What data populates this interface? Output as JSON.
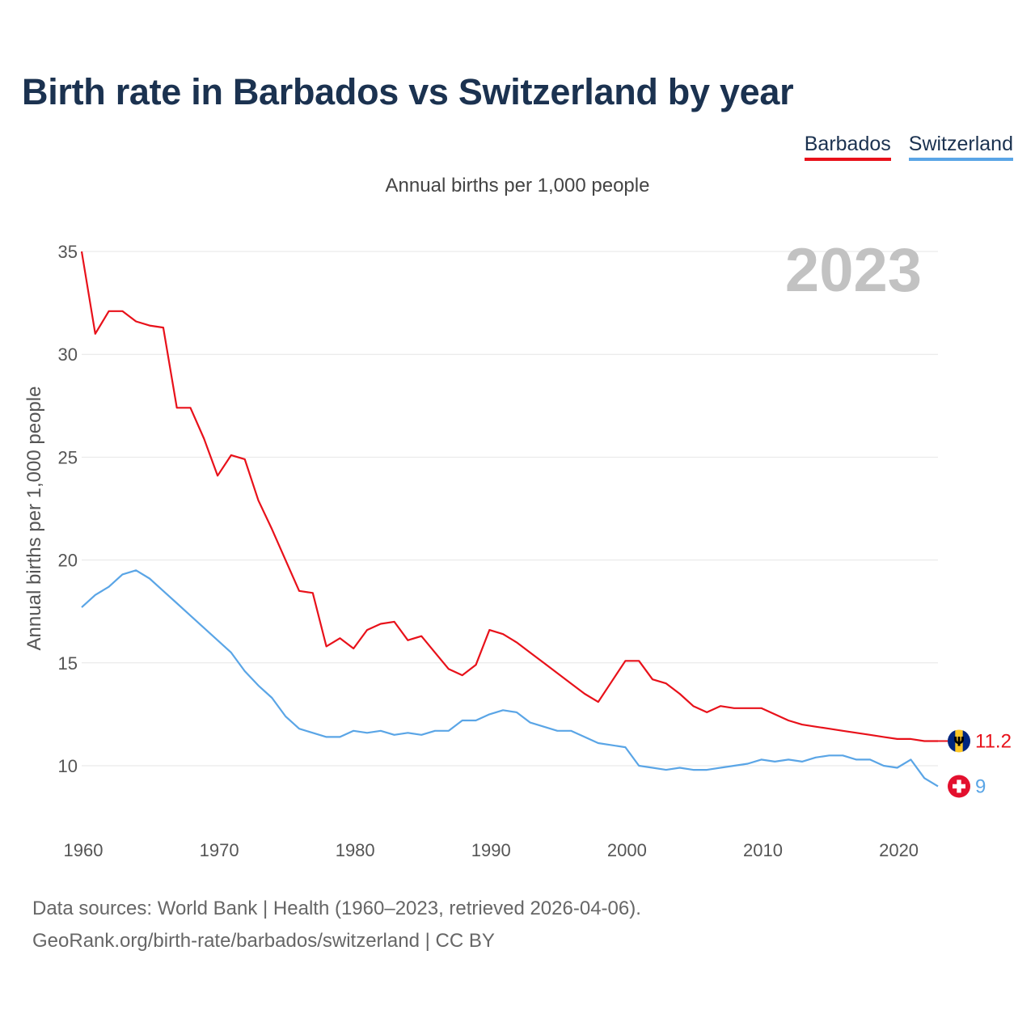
{
  "title": "Birth rate in Barbados vs Switzerland by year",
  "subtitle": "Annual births per 1,000 people",
  "legend": [
    {
      "label": "Barbados",
      "color": "#e8111a"
    },
    {
      "label": "Switzerland",
      "color": "#5aa5e6"
    }
  ],
  "year_watermark": "2023",
  "end_labels": {
    "barbados": "11.2",
    "switzerland": "9"
  },
  "source_lines": [
    "Data sources: World Bank | Health (1960–2023, retrieved 2026-04-06).",
    "GeoRank.org/birth-rate/barbados/switzerland | CC BY"
  ],
  "chart_data": {
    "type": "line",
    "title": "Birth rate in Barbados vs Switzerland by year",
    "xlabel": "",
    "ylabel": "Annual births per 1,000 people",
    "xlim": [
      1960,
      2023
    ],
    "ylim": [
      7,
      35
    ],
    "y_ticks": [
      10,
      15,
      20,
      25,
      30,
      35
    ],
    "x_ticks": [
      1960,
      1970,
      1980,
      1990,
      2000,
      2010,
      2020
    ],
    "grid": true,
    "x": [
      1960,
      1961,
      1962,
      1963,
      1964,
      1965,
      1966,
      1967,
      1968,
      1969,
      1970,
      1971,
      1972,
      1973,
      1974,
      1975,
      1976,
      1977,
      1978,
      1979,
      1980,
      1981,
      1982,
      1983,
      1984,
      1985,
      1986,
      1987,
      1988,
      1989,
      1990,
      1991,
      1992,
      1993,
      1994,
      1995,
      1996,
      1997,
      1998,
      1999,
      2000,
      2001,
      2002,
      2003,
      2004,
      2005,
      2006,
      2007,
      2008,
      2009,
      2010,
      2011,
      2012,
      2013,
      2014,
      2015,
      2016,
      2017,
      2018,
      2019,
      2020,
      2021,
      2022,
      2023
    ],
    "series": [
      {
        "name": "Barbados",
        "color": "#e8111a",
        "values": [
          35.0,
          31.0,
          32.1,
          32.1,
          31.6,
          31.4,
          31.3,
          27.4,
          27.4,
          25.9,
          24.1,
          25.1,
          24.9,
          22.9,
          21.5,
          20.0,
          18.5,
          18.4,
          15.8,
          16.2,
          15.7,
          16.6,
          16.9,
          17.0,
          16.1,
          16.3,
          15.5,
          14.7,
          14.4,
          14.9,
          16.6,
          16.4,
          16.0,
          15.5,
          15.0,
          14.5,
          14.0,
          13.5,
          13.1,
          14.1,
          15.1,
          15.1,
          14.2,
          14.0,
          13.5,
          12.9,
          12.6,
          12.9,
          12.8,
          12.8,
          12.8,
          12.5,
          12.2,
          12.0,
          11.9,
          11.8,
          11.7,
          11.6,
          11.5,
          11.4,
          11.3,
          11.3,
          11.2,
          11.2
        ]
      },
      {
        "name": "Switzerland",
        "color": "#5aa5e6",
        "values": [
          17.7,
          18.3,
          18.7,
          19.3,
          19.5,
          19.1,
          18.5,
          17.9,
          17.3,
          16.7,
          16.1,
          15.5,
          14.6,
          13.9,
          13.3,
          12.4,
          11.8,
          11.6,
          11.4,
          11.4,
          11.7,
          11.6,
          11.7,
          11.5,
          11.6,
          11.5,
          11.7,
          11.7,
          12.2,
          12.2,
          12.5,
          12.7,
          12.6,
          12.1,
          11.9,
          11.7,
          11.7,
          11.4,
          11.1,
          11.0,
          10.9,
          10.0,
          9.9,
          9.8,
          9.9,
          9.8,
          9.8,
          9.9,
          10.0,
          10.1,
          10.3,
          10.2,
          10.3,
          10.2,
          10.4,
          10.5,
          10.5,
          10.3,
          10.3,
          10.0,
          9.9,
          10.3,
          9.4,
          9.0
        ]
      }
    ]
  }
}
